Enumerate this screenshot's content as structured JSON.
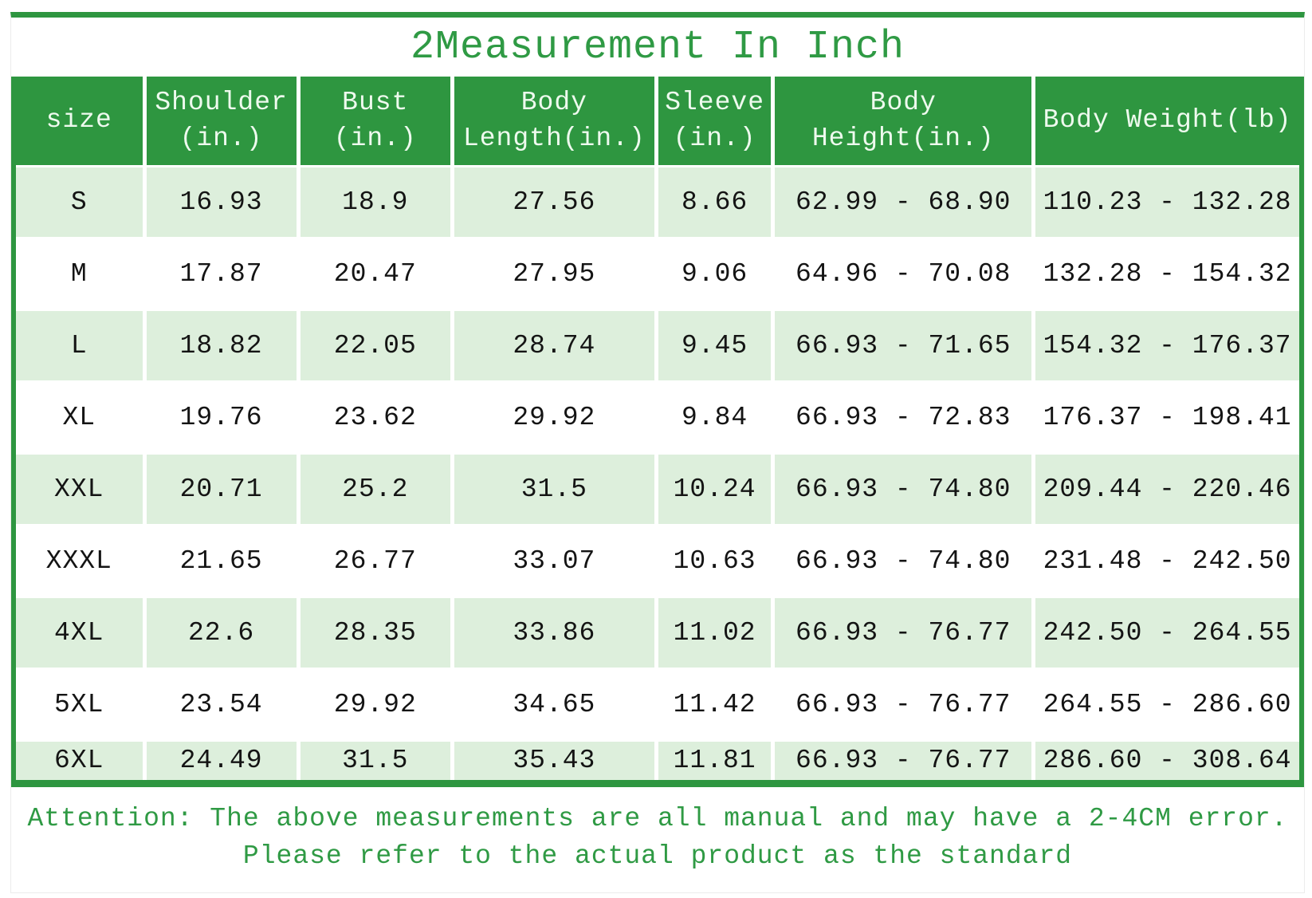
{
  "title": "2Measurement In Inch",
  "colors": {
    "green": "#2e9640",
    "light_green": "#ddefdc",
    "header_text": "#eefaee",
    "accent_text": "#2f9a44",
    "cell_text": "#141414"
  },
  "table": {
    "headers": [
      {
        "key": "size",
        "lines": [
          "size"
        ]
      },
      {
        "key": "shoulder",
        "lines": [
          "Shoulder",
          "(in.)"
        ]
      },
      {
        "key": "bust",
        "lines": [
          "Bust",
          "(in.)"
        ]
      },
      {
        "key": "body-length",
        "lines": [
          "Body",
          "Length(in.)"
        ]
      },
      {
        "key": "sleeve",
        "lines": [
          "Sleeve",
          "(in.)"
        ]
      },
      {
        "key": "body-height",
        "lines": [
          "Body",
          "Height(in.)"
        ]
      },
      {
        "key": "body-weight",
        "lines": [
          "Body Weight(lb)"
        ]
      }
    ]
  },
  "chart_data": {
    "type": "table",
    "title": "2Measurement In Inch",
    "columns": [
      "size",
      "Shoulder (in.)",
      "Bust (in.)",
      "Body Length(in.)",
      "Sleeve (in.)",
      "Body Height(in.)",
      "Body Weight(lb)"
    ],
    "rows": [
      [
        "S",
        "16.93",
        "18.9",
        "27.56",
        "8.66",
        "62.99 - 68.90",
        "110.23 - 132.28"
      ],
      [
        "M",
        "17.87",
        "20.47",
        "27.95",
        "9.06",
        "64.96 - 70.08",
        "132.28 - 154.32"
      ],
      [
        "L",
        "18.82",
        "22.05",
        "28.74",
        "9.45",
        "66.93 - 71.65",
        "154.32 - 176.37"
      ],
      [
        "XL",
        "19.76",
        "23.62",
        "29.92",
        "9.84",
        "66.93 - 72.83",
        "176.37 - 198.41"
      ],
      [
        "XXL",
        "20.71",
        "25.2",
        "31.5",
        "10.24",
        "66.93 - 74.80",
        "209.44 - 220.46"
      ],
      [
        "XXXL",
        "21.65",
        "26.77",
        "33.07",
        "10.63",
        "66.93 - 74.80",
        "231.48 - 242.50"
      ],
      [
        "4XL",
        "22.6",
        "28.35",
        "33.86",
        "11.02",
        "66.93 - 76.77",
        "242.50 - 264.55"
      ],
      [
        "5XL",
        "23.54",
        "29.92",
        "34.65",
        "11.42",
        "66.93 - 76.77",
        "264.55 - 286.60"
      ],
      [
        "6XL",
        "24.49",
        "31.5",
        "35.43",
        "11.81",
        "66.93 - 76.77",
        "286.60 - 308.64"
      ]
    ]
  },
  "note": {
    "line1": "Attention: The above measurements are all manual and may have a 2-4CM error.",
    "line2": "Please refer to the actual product as the standard"
  }
}
